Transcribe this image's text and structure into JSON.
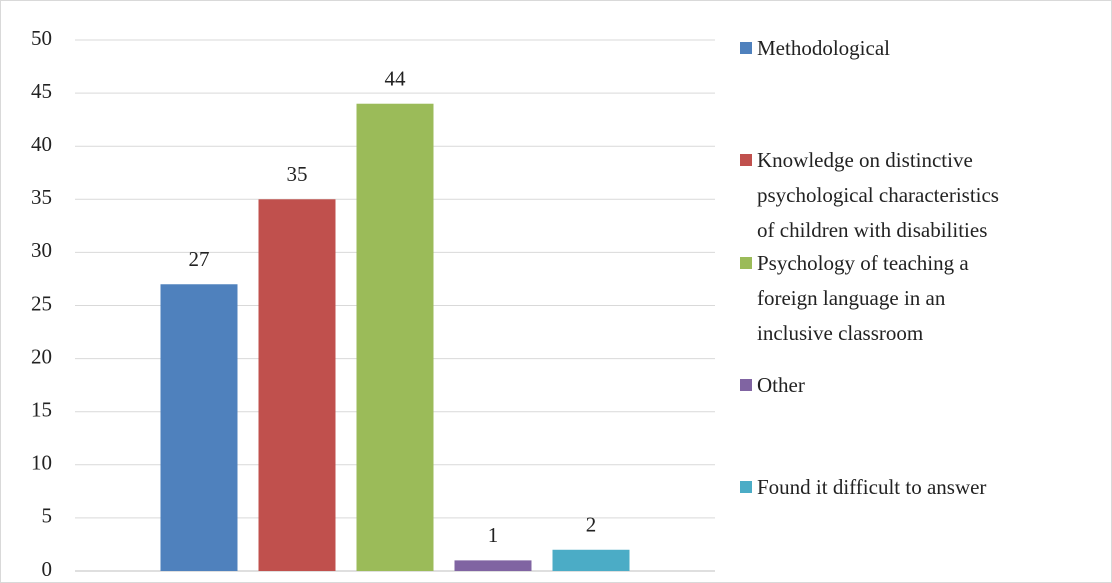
{
  "chart_data": {
    "type": "bar",
    "categories": [
      null
    ],
    "series": [
      {
        "name": "Methodological",
        "color": "#4f81bd",
        "values": [
          27
        ]
      },
      {
        "name": "Knowledge on distinctive psychological characteristics of children with disabilities",
        "color": "#c0504d",
        "values": [
          35
        ]
      },
      {
        "name": "Psychology of teaching a foreign language in an inclusive classroom",
        "color": "#9bbb59",
        "values": [
          44
        ]
      },
      {
        "name": "Other",
        "color": "#8064a2",
        "values": [
          1
        ]
      },
      {
        "name": "Found it difficult to answer",
        "color": "#4bacc6",
        "values": [
          2
        ]
      }
    ],
    "ylim": [
      0,
      50
    ],
    "yticks": [
      0,
      5,
      10,
      15,
      20,
      25,
      30,
      35,
      40,
      45,
      50
    ],
    "grid": true,
    "legend": "right"
  }
}
